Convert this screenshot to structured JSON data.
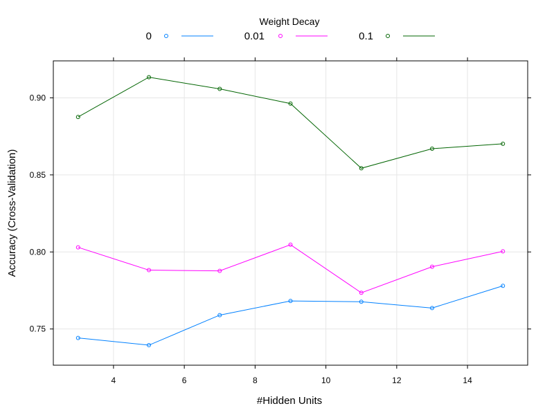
{
  "chart_data": {
    "type": "line",
    "xlabel": "#Hidden Units",
    "ylabel": "Accuracy (Cross-Validation)",
    "legend_title": "Weight Decay",
    "legend_position": "top",
    "grid": true,
    "xlim": [
      2.3,
      15.7
    ],
    "ylim": [
      0.7265,
      0.924
    ],
    "x_ticks": [
      4,
      6,
      8,
      10,
      12,
      14
    ],
    "y_ticks": [
      0.75,
      0.8,
      0.85,
      0.9
    ],
    "y_tick_labels": [
      "0.75",
      "0.80",
      "0.85",
      "0.90"
    ],
    "x": [
      3,
      5,
      7,
      9,
      11,
      13,
      15
    ],
    "series": [
      {
        "name": "0",
        "color": "#0080ff",
        "marker": "circle",
        "values": [
          0.7442,
          0.7395,
          0.759,
          0.7682,
          0.7677,
          0.7636,
          0.778
        ]
      },
      {
        "name": "0.01",
        "color": "#ff00ff",
        "marker": "circle",
        "values": [
          0.803,
          0.7882,
          0.7877,
          0.8047,
          0.7735,
          0.7904,
          0.8004
        ]
      },
      {
        "name": "0.1",
        "color": "#006400",
        "marker": "circle",
        "values": [
          0.8876,
          0.9134,
          0.9058,
          0.8963,
          0.8543,
          0.867,
          0.8702
        ]
      }
    ]
  }
}
